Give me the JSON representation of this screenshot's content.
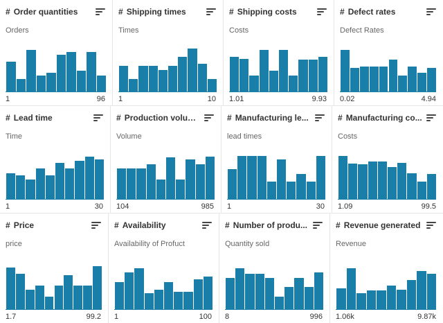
{
  "cards": [
    {
      "title": "Order quantities",
      "desc": "Orders",
      "min": "1",
      "max": "96",
      "hist": [
        0.69,
        0.3,
        0.96,
        0.37,
        0.43,
        0.84,
        0.9,
        0.48,
        0.9,
        0.37
      ]
    },
    {
      "title": "Shipping times",
      "desc": "Times",
      "min": "1",
      "max": "10",
      "hist": [
        0.6,
        0.3,
        0.6,
        0.6,
        0.5,
        0.6,
        0.79,
        0.99,
        0.64,
        0.3
      ]
    },
    {
      "title": "Shipping costs",
      "desc": "Costs",
      "min": "1.01",
      "max": "9.93",
      "hist": [
        0.79,
        0.75,
        0.37,
        0.96,
        0.48,
        0.96,
        0.37,
        0.74,
        0.74,
        0.79
      ]
    },
    {
      "title": "Defect rates",
      "desc": "Defect Rates",
      "min": "0.02",
      "max": "4.94",
      "hist": [
        0.96,
        0.54,
        0.58,
        0.58,
        0.58,
        0.74,
        0.37,
        0.58,
        0.43,
        0.54
      ]
    },
    {
      "title": "Lead time",
      "desc": "Time",
      "min": "1",
      "max": "30",
      "hist": [
        0.6,
        0.55,
        0.45,
        0.7,
        0.55,
        0.83,
        0.7,
        0.88,
        0.97,
        0.9
      ]
    },
    {
      "title": "Production volum...",
      "desc": "Volume",
      "min": "104",
      "max": "985",
      "hist": [
        0.7,
        0.7,
        0.7,
        0.8,
        0.45,
        0.95,
        0.45,
        0.9,
        0.8,
        0.97
      ]
    },
    {
      "title": "Manufacturing le...",
      "desc": "lead times",
      "min": "1",
      "max": "30",
      "hist": [
        0.68,
        0.98,
        0.98,
        0.98,
        0.4,
        0.9,
        0.4,
        0.58,
        0.4,
        0.98
      ]
    },
    {
      "title": "Manufacturing co...",
      "desc": "Costs",
      "min": "1.09",
      "max": "99.5",
      "hist": [
        0.98,
        0.82,
        0.8,
        0.86,
        0.86,
        0.73,
        0.83,
        0.59,
        0.4,
        0.58
      ]
    },
    {
      "title": "Price",
      "desc": "price",
      "min": "1.7",
      "max": "99.2",
      "hist": [
        0.95,
        0.82,
        0.45,
        0.55,
        0.3,
        0.55,
        0.78,
        0.55,
        0.55,
        0.98
      ]
    },
    {
      "title": "Availability",
      "desc": "Availability of Profuct",
      "min": "1",
      "max": "100",
      "hist": [
        0.62,
        0.85,
        0.94,
        0.37,
        0.46,
        0.62,
        0.41,
        0.41,
        0.68,
        0.75
      ]
    },
    {
      "title": "Number of produ...",
      "desc": "Quantity sold",
      "min": "8",
      "max": "996",
      "hist": [
        0.72,
        0.94,
        0.82,
        0.82,
        0.72,
        0.3,
        0.52,
        0.72,
        0.52,
        0.84
      ]
    },
    {
      "title": "Revenue generated",
      "desc": "Revenue",
      "min": "1.06k",
      "max": "9.87k",
      "hist": [
        0.48,
        0.93,
        0.38,
        0.43,
        0.43,
        0.55,
        0.45,
        0.67,
        0.88,
        0.82
      ]
    }
  ]
}
